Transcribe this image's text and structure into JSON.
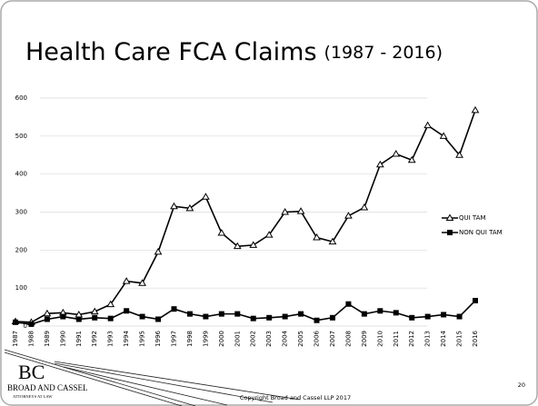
{
  "chart_data": {
    "type": "line",
    "title": "Health Care FCA Claims",
    "subtitle": "(1987 - 2016)",
    "categories": [
      "1987",
      "1988",
      "1989",
      "1990",
      "1991",
      "1992",
      "1993",
      "1994",
      "1995",
      "1996",
      "1997",
      "1998",
      "1999",
      "2000",
      "2001",
      "2002",
      "2003",
      "2004",
      "2005",
      "2006",
      "2007",
      "2008",
      "2009",
      "2010",
      "2011",
      "2012",
      "2013",
      "2014",
      "2015",
      "2016"
    ],
    "series": [
      {
        "name": "QUI TAM",
        "color": "#000000",
        "marker": "triangle",
        "values": [
          12,
          10,
          33,
          35,
          30,
          38,
          57,
          118,
          113,
          195,
          315,
          310,
          340,
          245,
          210,
          213,
          240,
          300,
          302,
          233,
          222,
          290,
          312,
          425,
          453,
          437,
          528,
          500,
          450,
          568
        ]
      },
      {
        "name": "NON QUI TAM",
        "color": "#000000",
        "marker": "square",
        "values": [
          10,
          5,
          18,
          25,
          18,
          22,
          20,
          40,
          25,
          18,
          45,
          32,
          25,
          32,
          32,
          20,
          22,
          25,
          32,
          15,
          22,
          58,
          32,
          40,
          35,
          22,
          25,
          30,
          25,
          67
        ]
      }
    ],
    "ylim": [
      0,
      600
    ],
    "yticks": [
      0,
      100,
      200,
      300,
      400,
      500,
      600
    ],
    "grid": true,
    "legend": "right"
  },
  "footer": {
    "copyright": "Copyright Broad and Cassel LLP 2017",
    "page": "20",
    "logo": {
      "monogram": "BC",
      "name": "BROAD AND CASSEL",
      "tagline": "ATTORNEYS AT LAW"
    }
  }
}
